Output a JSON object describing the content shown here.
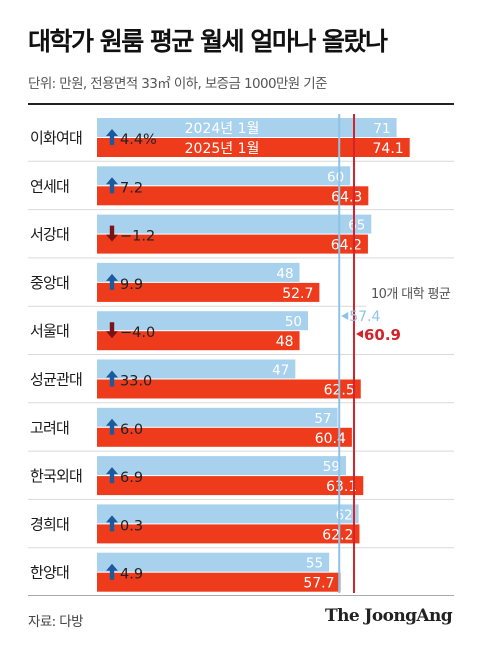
{
  "header": {
    "title": "대학가 원룸 평균 월세 얼마나 올랐나",
    "subtitle": "단위: 만원, 전용면적 33㎡ 이하, 보증금 1000만원 기준"
  },
  "footer": {
    "source": "자료: 다방",
    "brand": "The JoongAng"
  },
  "colors": {
    "series_2024": "#a8d1ee",
    "series_2025": "#ee3b1c",
    "avg_2024": "#8ec3e6",
    "avg_2025": "#d4232a",
    "arrow_up": "#1c5a9e",
    "arrow_down": "#7a1414",
    "row_divider": "#d9d9d9"
  },
  "chart_data": {
    "type": "bar",
    "orientation": "horizontal",
    "categories": [
      "이화여대",
      "연세대",
      "서강대",
      "중앙대",
      "서울대",
      "성균관대",
      "고려대",
      "한국외대",
      "경희대",
      "한양대"
    ],
    "series": [
      {
        "name": "2024년 1월",
        "values": [
          71,
          60,
          65,
          48,
          50,
          47,
          57,
          59,
          62,
          55
        ]
      },
      {
        "name": "2025년 1월",
        "values": [
          74.1,
          64.3,
          64.2,
          52.7,
          48,
          62.5,
          60.4,
          63.1,
          62.2,
          57.7
        ]
      }
    ],
    "value_labels_2024": [
      "71",
      "60",
      "65",
      "48",
      "50",
      "47",
      "57",
      "59",
      "62",
      "55"
    ],
    "value_labels_2025": [
      "74.1",
      "64.3",
      "64.2",
      "52.7",
      "48",
      "62.5",
      "60.4",
      "63.1",
      "62.2",
      "57.7"
    ],
    "change_labels": [
      "4.4%",
      "7.2",
      "−1.2",
      "9.9",
      "−4.0",
      "33.0",
      "6.0",
      "6.9",
      "0.3",
      "4.9"
    ],
    "change_direction": [
      "up",
      "up",
      "down",
      "up",
      "down",
      "up",
      "up",
      "up",
      "up",
      "up"
    ],
    "average": {
      "label": "10개 대학 평균",
      "value_2024": 57.4,
      "value_2025": 60.9,
      "value_2024_label": "57.4",
      "value_2025_label": "60.9"
    },
    "xlim": [
      0,
      76
    ],
    "legend_placement": "inside first row bars",
    "grid": false
  }
}
